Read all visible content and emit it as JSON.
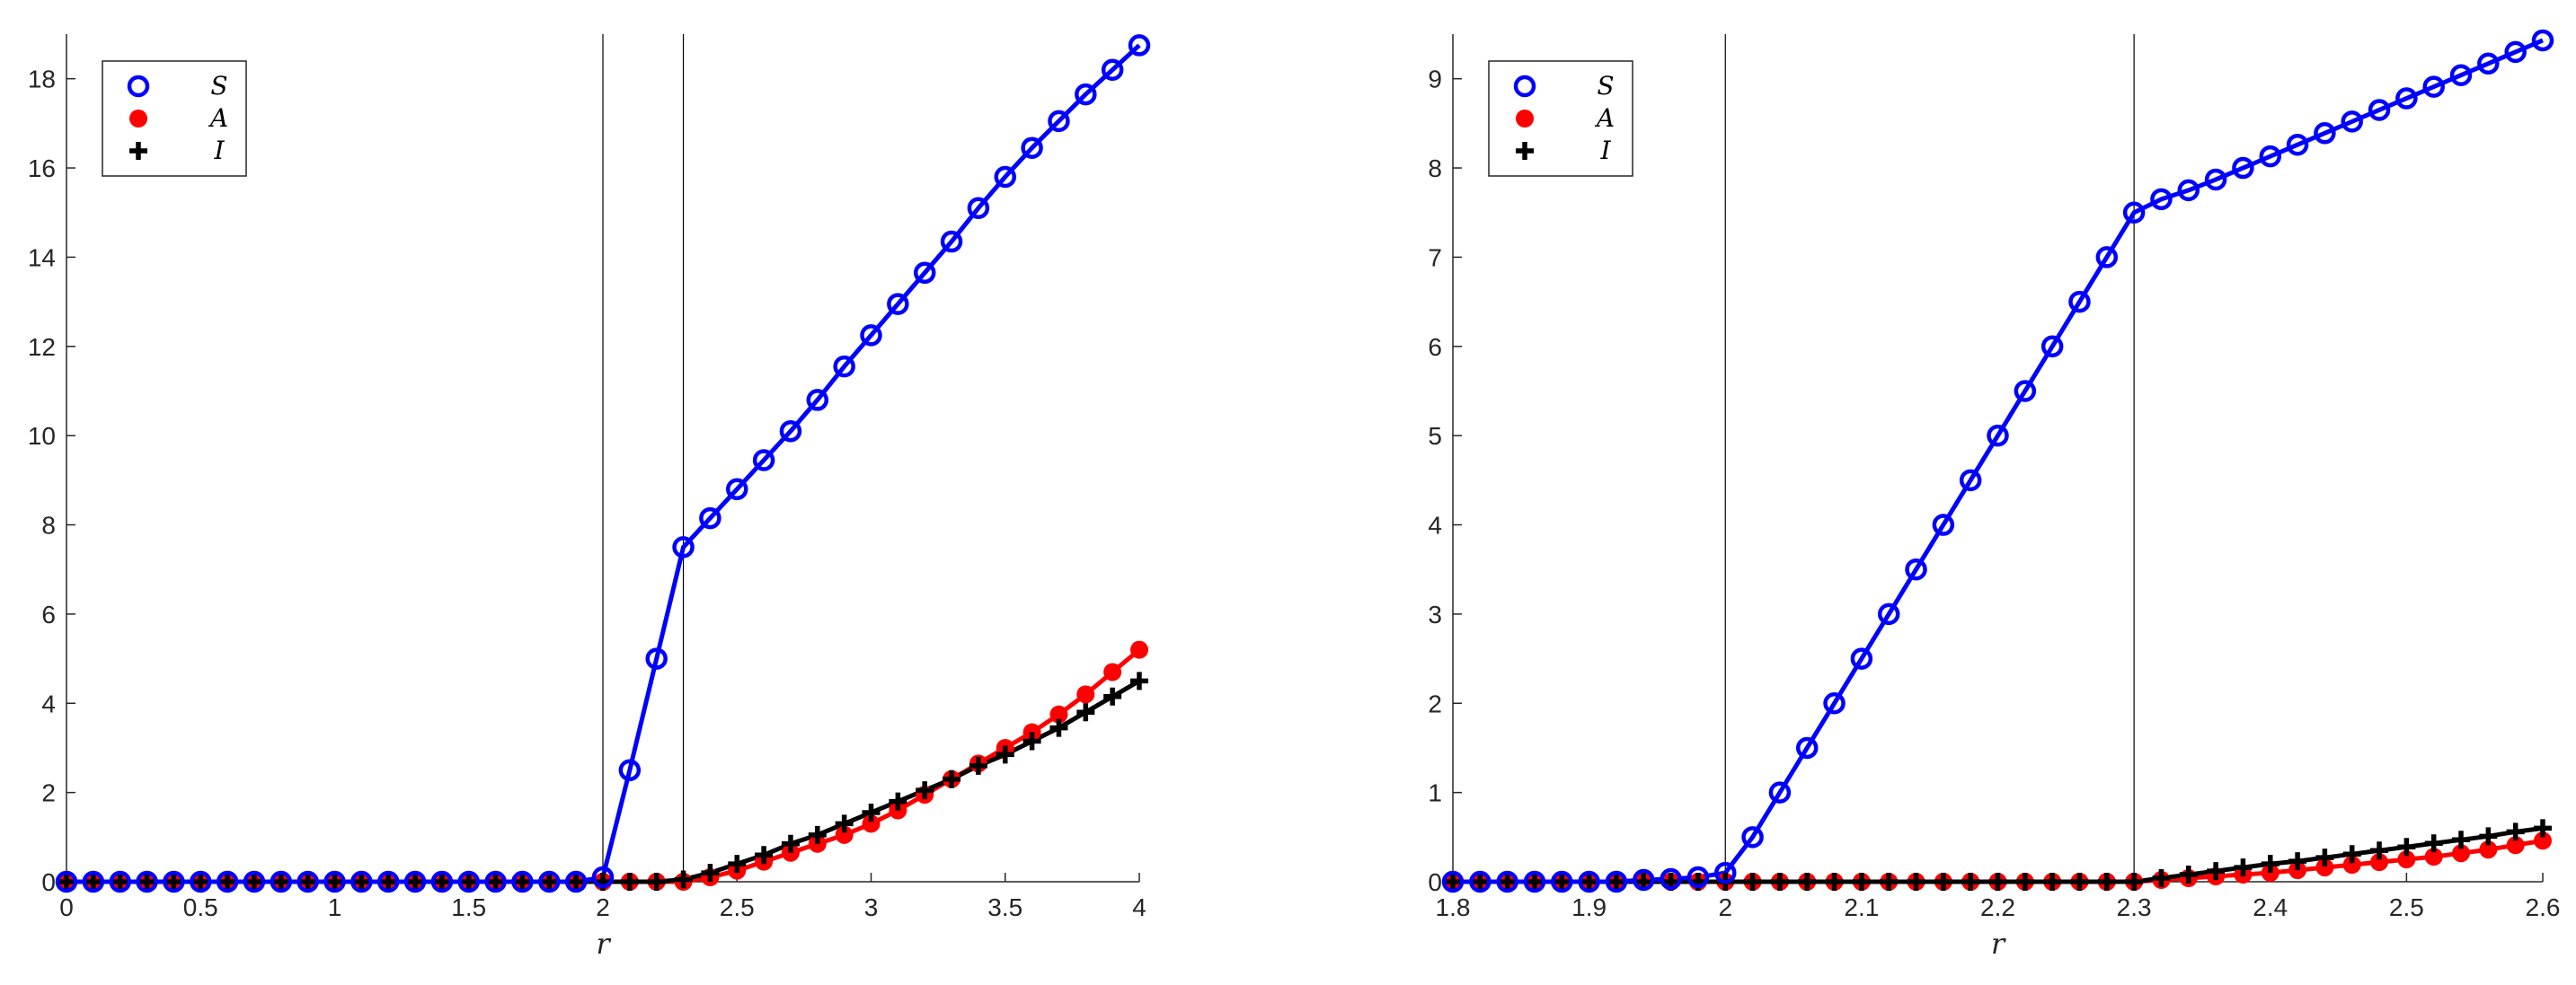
{
  "colors": {
    "S": "#0000ff",
    "A": "#ff0000",
    "I": "#000000",
    "axis": "#262626",
    "vline": "#000000"
  },
  "chart_data": [
    {
      "type": "line",
      "xlabel": "r",
      "ylabel": "",
      "xlim": [
        0,
        4
      ],
      "ylim": [
        0,
        19
      ],
      "xticks": [
        0,
        0.5,
        1,
        1.5,
        2,
        2.5,
        3,
        3.5,
        4
      ],
      "xtick_labels": [
        "0",
        "0.5",
        "1",
        "1.5",
        "2",
        "2.5",
        "3",
        "3.5",
        "4"
      ],
      "yticks": [
        0,
        2,
        4,
        6,
        8,
        10,
        12,
        14,
        16,
        18
      ],
      "ytick_labels": [
        "0",
        "2",
        "4",
        "6",
        "8",
        "10",
        "12",
        "14",
        "16",
        "18"
      ],
      "vlines": [
        2.0,
        2.3
      ],
      "legend_position": "top-left",
      "x": [
        0,
        0.1,
        0.2,
        0.3,
        0.4,
        0.5,
        0.6,
        0.7,
        0.8,
        0.9,
        1.0,
        1.1,
        1.2,
        1.3,
        1.4,
        1.5,
        1.6,
        1.7,
        1.8,
        1.9,
        2.0,
        2.1,
        2.2,
        2.3,
        2.4,
        2.5,
        2.6,
        2.7,
        2.8,
        2.9,
        3.0,
        3.1,
        3.2,
        3.3,
        3.4,
        3.5,
        3.6,
        3.7,
        3.8,
        3.9,
        4.0
      ],
      "series": [
        {
          "name": "S",
          "marker": "circle",
          "values": [
            0,
            0,
            0,
            0,
            0,
            0,
            0,
            0,
            0,
            0,
            0,
            0,
            0,
            0,
            0,
            0,
            0,
            0,
            0,
            0,
            0.1,
            2.5,
            5.0,
            7.5,
            8.15,
            8.8,
            9.45,
            10.1,
            10.8,
            11.55,
            12.25,
            12.95,
            13.65,
            14.35,
            15.1,
            15.8,
            16.45,
            17.05,
            17.65,
            18.2,
            18.75
          ]
        },
        {
          "name": "A",
          "marker": "dot",
          "values": [
            0,
            0,
            0,
            0,
            0,
            0,
            0,
            0,
            0,
            0,
            0,
            0,
            0,
            0,
            0,
            0,
            0,
            0,
            0,
            0,
            0,
            0,
            0,
            0,
            0.1,
            0.25,
            0.45,
            0.65,
            0.85,
            1.05,
            1.3,
            1.6,
            1.95,
            2.3,
            2.65,
            3.0,
            3.35,
            3.75,
            4.2,
            4.7,
            5.2
          ]
        },
        {
          "name": "I",
          "marker": "plus",
          "values": [
            0,
            0,
            0,
            0,
            0,
            0,
            0,
            0,
            0,
            0,
            0,
            0,
            0,
            0,
            0,
            0,
            0,
            0,
            0,
            0,
            0,
            0,
            0,
            0.05,
            0.2,
            0.4,
            0.6,
            0.85,
            1.05,
            1.3,
            1.55,
            1.8,
            2.05,
            2.3,
            2.6,
            2.85,
            3.15,
            3.45,
            3.8,
            4.15,
            4.5
          ]
        }
      ]
    },
    {
      "type": "line",
      "xlabel": "r",
      "ylabel": "",
      "xlim": [
        1.8,
        2.6
      ],
      "ylim": [
        0,
        9.5
      ],
      "xticks": [
        1.8,
        1.9,
        2.0,
        2.1,
        2.2,
        2.3,
        2.4,
        2.5,
        2.6
      ],
      "xtick_labels": [
        "1.8",
        "1.9",
        "2",
        "2.1",
        "2.2",
        "2.3",
        "2.4",
        "2.5",
        "2.6"
      ],
      "yticks": [
        0,
        1,
        2,
        3,
        4,
        5,
        6,
        7,
        8,
        9
      ],
      "ytick_labels": [
        "0",
        "1",
        "2",
        "3",
        "4",
        "5",
        "6",
        "7",
        "8",
        "9"
      ],
      "vlines": [
        2.0,
        2.3
      ],
      "legend_position": "top-left",
      "x": [
        1.8,
        1.82,
        1.84,
        1.86,
        1.88,
        1.9,
        1.92,
        1.94,
        1.96,
        1.98,
        2.0,
        2.02,
        2.04,
        2.06,
        2.08,
        2.1,
        2.12,
        2.14,
        2.16,
        2.18,
        2.2,
        2.22,
        2.24,
        2.26,
        2.28,
        2.3,
        2.32,
        2.34,
        2.36,
        2.38,
        2.4,
        2.42,
        2.44,
        2.46,
        2.48,
        2.5,
        2.52,
        2.54,
        2.56,
        2.58,
        2.6
      ],
      "series": [
        {
          "name": "S",
          "marker": "circle",
          "values": [
            0,
            0,
            0,
            0,
            0,
            0,
            0,
            0.02,
            0.03,
            0.05,
            0.1,
            0.5,
            1.0,
            1.5,
            2.0,
            2.5,
            3.0,
            3.5,
            4.0,
            4.5,
            5.0,
            5.5,
            6.0,
            6.5,
            7.0,
            7.5,
            7.65,
            7.75,
            7.87,
            8.0,
            8.13,
            8.26,
            8.39,
            8.52,
            8.65,
            8.78,
            8.91,
            9.04,
            9.17,
            9.3,
            9.43
          ]
        },
        {
          "name": "A",
          "marker": "dot",
          "values": [
            0,
            0,
            0,
            0,
            0,
            0,
            0,
            0,
            0,
            0,
            0,
            0,
            0,
            0,
            0,
            0,
            0,
            0,
            0,
            0,
            0,
            0,
            0,
            0,
            0,
            0,
            0.02,
            0.04,
            0.06,
            0.08,
            0.1,
            0.13,
            0.16,
            0.19,
            0.22,
            0.25,
            0.28,
            0.32,
            0.36,
            0.41,
            0.46
          ]
        },
        {
          "name": "I",
          "marker": "plus",
          "values": [
            0,
            0,
            0,
            0,
            0,
            0,
            0,
            0,
            0,
            0,
            0,
            0,
            0,
            0,
            0,
            0,
            0,
            0,
            0,
            0,
            0,
            0,
            0,
            0,
            0,
            0,
            0.04,
            0.08,
            0.12,
            0.16,
            0.2,
            0.23,
            0.27,
            0.31,
            0.35,
            0.39,
            0.43,
            0.47,
            0.51,
            0.56,
            0.6
          ]
        }
      ]
    }
  ]
}
